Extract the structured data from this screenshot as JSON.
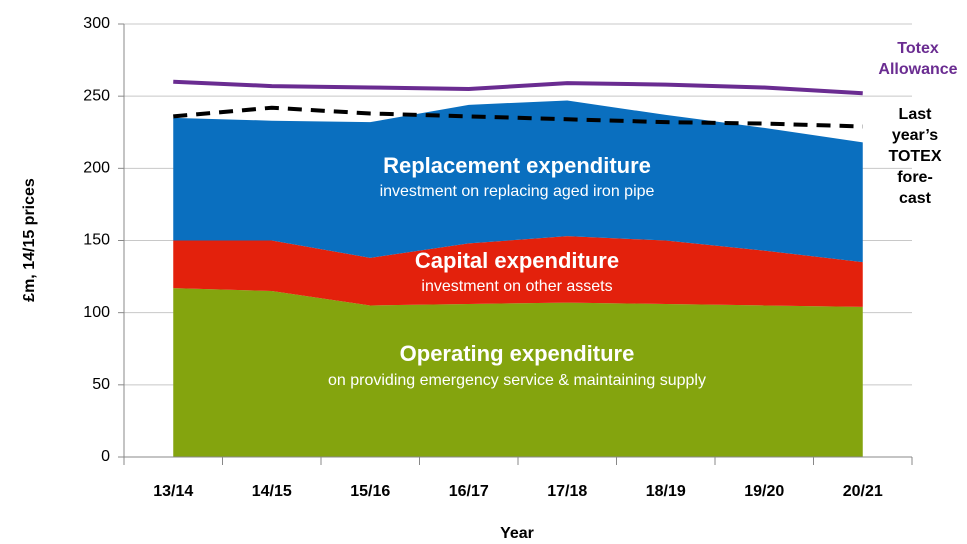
{
  "chart_data": {
    "type": "stacked-area-line",
    "categories": [
      "13/14",
      "14/15",
      "15/16",
      "16/17",
      "17/18",
      "18/19",
      "19/20",
      "20/21"
    ],
    "x_label": "Year",
    "y_label": "£m, 14/15 prices",
    "ylim": [
      0,
      300
    ],
    "yticks": [
      0,
      50,
      100,
      150,
      200,
      250,
      300
    ],
    "grid": true,
    "series": [
      {
        "name": "Operating expenditure",
        "description": "on providing emergency service & maintaining supply",
        "kind": "area",
        "color": "#84a40e",
        "values": [
          117,
          115,
          105,
          106,
          107,
          106,
          105,
          104
        ]
      },
      {
        "name": "Capital expenditure",
        "description": "investment on other assets",
        "kind": "area",
        "color": "#e3210c",
        "values": [
          33,
          35,
          33,
          42,
          46,
          44,
          38,
          31
        ]
      },
      {
        "name": "Replacement expenditure",
        "description": "investment on replacing aged iron pipe",
        "kind": "area",
        "color": "#0a6fbf",
        "values": [
          85,
          83,
          94,
          96,
          94,
          87,
          85,
          83
        ]
      },
      {
        "name": "Totex Allowance",
        "kind": "line",
        "color": "#6a2c91",
        "dash": false,
        "values": [
          260,
          257,
          256,
          255,
          259,
          258,
          256,
          252
        ]
      },
      {
        "name": "Last year’s TOTEX fore-cast",
        "kind": "line",
        "color": "#000000",
        "dash": true,
        "values": [
          236,
          242,
          238,
          236,
          234,
          232,
          231,
          229
        ]
      }
    ]
  }
}
